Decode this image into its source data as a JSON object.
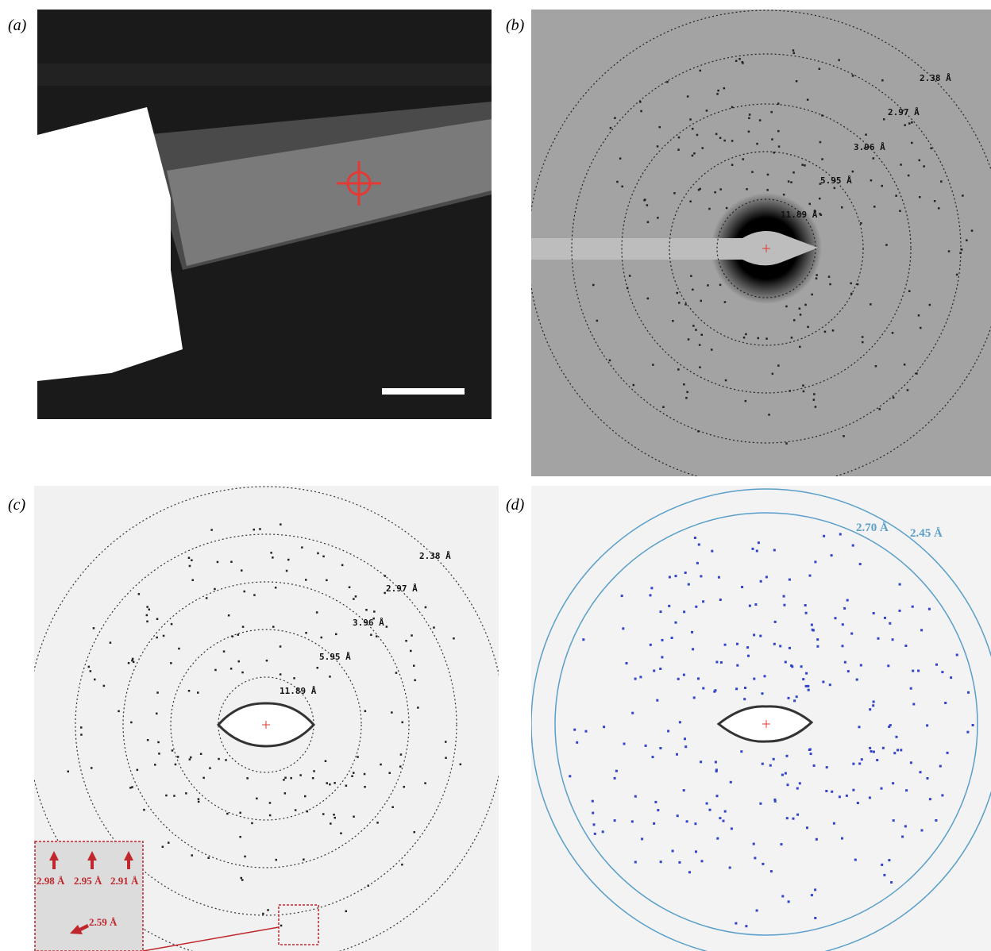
{
  "panels": [
    {
      "label": "(a)"
    },
    {
      "label": "(b)",
      "rings": [
        "2.38 Å",
        "2.97 Å",
        "3.96 Å",
        "5.95 Å",
        "11.89 Å"
      ]
    },
    {
      "label": "(c)",
      "rings": [
        "2.38 Å",
        "2.97 Å",
        "3.96 Å",
        "5.95 Å",
        "11.89 Å"
      ],
      "inset": [
        "2.98 Å",
        "2.95 Å",
        "2.91 Å",
        "2.59 Å"
      ]
    },
    {
      "label": "(d)",
      "rings": [
        "2.70 Å",
        "2.45 Å"
      ]
    }
  ]
}
